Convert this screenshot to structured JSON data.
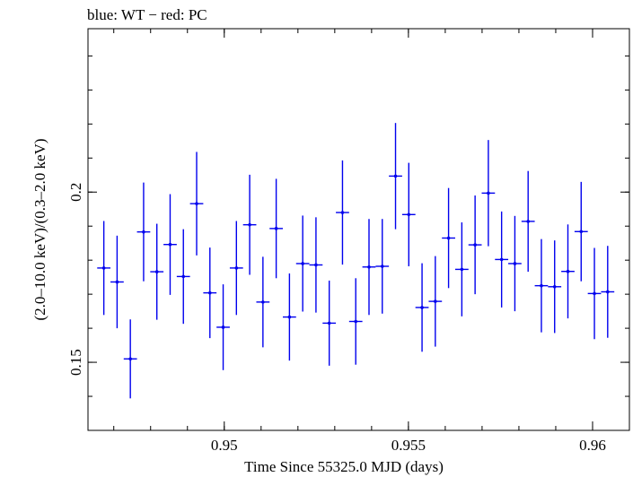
{
  "chart_data": {
    "type": "scatter",
    "title": "blue: WT − red: PC",
    "xlabel": "Time Since 55325.0 MJD (days)",
    "ylabel": "(2.0–10.0 keV)/(0.3–2.0 keV)",
    "xlim": [
      0.9463,
      0.961
    ],
    "ylim": [
      0.13,
      0.248
    ],
    "xticks": [
      {
        "value": 0.95,
        "label": "0.95"
      },
      {
        "value": 0.955,
        "label": "0.955"
      },
      {
        "value": 0.96,
        "label": "0.96"
      }
    ],
    "xminor_step": 0.001,
    "yticks": [
      {
        "value": 0.15,
        "label": "0.15"
      },
      {
        "value": 0.2,
        "label": "0.2"
      }
    ],
    "yminor_step": 0.01,
    "grid": false,
    "colors": {
      "WT": "#0000ee",
      "frame": "#000000"
    },
    "series": [
      {
        "name": "WT",
        "points": [
          {
            "x": 0.94673,
            "xerr": 0.00018,
            "y": 0.1777,
            "yerr": 0.0138
          },
          {
            "x": 0.94709,
            "xerr": 0.00018,
            "y": 0.1736,
            "yerr": 0.0136
          },
          {
            "x": 0.94745,
            "xerr": 0.00018,
            "y": 0.151,
            "yerr": 0.0116
          },
          {
            "x": 0.94781,
            "xerr": 0.00018,
            "y": 0.1883,
            "yerr": 0.0145
          },
          {
            "x": 0.94817,
            "xerr": 0.00018,
            "y": 0.1766,
            "yerr": 0.0141
          },
          {
            "x": 0.94853,
            "xerr": 0.00018,
            "y": 0.1846,
            "yerr": 0.0148
          },
          {
            "x": 0.94889,
            "xerr": 0.00018,
            "y": 0.1752,
            "yerr": 0.0139
          },
          {
            "x": 0.94925,
            "xerr": 0.00018,
            "y": 0.1966,
            "yerr": 0.0152
          },
          {
            "x": 0.94961,
            "xerr": 0.00018,
            "y": 0.1704,
            "yerr": 0.0133
          },
          {
            "x": 0.94997,
            "xerr": 0.00018,
            "y": 0.1603,
            "yerr": 0.0126
          },
          {
            "x": 0.95033,
            "xerr": 0.00018,
            "y": 0.1777,
            "yerr": 0.0138
          },
          {
            "x": 0.95069,
            "xerr": 0.00018,
            "y": 0.1904,
            "yerr": 0.0147
          },
          {
            "x": 0.95105,
            "xerr": 0.00018,
            "y": 0.1677,
            "yerr": 0.0133
          },
          {
            "x": 0.95141,
            "xerr": 0.00018,
            "y": 0.1893,
            "yerr": 0.0146
          },
          {
            "x": 0.95177,
            "xerr": 0.00018,
            "y": 0.1633,
            "yerr": 0.0128
          },
          {
            "x": 0.95213,
            "xerr": 0.00018,
            "y": 0.179,
            "yerr": 0.0141
          },
          {
            "x": 0.95249,
            "xerr": 0.00018,
            "y": 0.1786,
            "yerr": 0.014
          },
          {
            "x": 0.95285,
            "xerr": 0.00018,
            "y": 0.1615,
            "yerr": 0.0125
          },
          {
            "x": 0.95321,
            "xerr": 0.00018,
            "y": 0.194,
            "yerr": 0.0153
          },
          {
            "x": 0.95357,
            "xerr": 0.00018,
            "y": 0.162,
            "yerr": 0.0127
          },
          {
            "x": 0.95393,
            "xerr": 0.00018,
            "y": 0.178,
            "yerr": 0.0141
          },
          {
            "x": 0.95429,
            "xerr": 0.00018,
            "y": 0.1782,
            "yerr": 0.0139
          },
          {
            "x": 0.95465,
            "xerr": 0.00018,
            "y": 0.2047,
            "yerr": 0.0156
          },
          {
            "x": 0.95501,
            "xerr": 0.00018,
            "y": 0.1934,
            "yerr": 0.0152
          },
          {
            "x": 0.95537,
            "xerr": 0.00018,
            "y": 0.1661,
            "yerr": 0.013
          },
          {
            "x": 0.95573,
            "xerr": 0.00018,
            "y": 0.1679,
            "yerr": 0.0133
          },
          {
            "x": 0.95609,
            "xerr": 0.00018,
            "y": 0.1865,
            "yerr": 0.0147
          },
          {
            "x": 0.95645,
            "xerr": 0.00018,
            "y": 0.1773,
            "yerr": 0.0138
          },
          {
            "x": 0.95681,
            "xerr": 0.00018,
            "y": 0.1845,
            "yerr": 0.0145
          },
          {
            "x": 0.95717,
            "xerr": 0.00018,
            "y": 0.1997,
            "yerr": 0.0156
          },
          {
            "x": 0.95753,
            "xerr": 0.00018,
            "y": 0.1802,
            "yerr": 0.0141
          },
          {
            "x": 0.95789,
            "xerr": 0.00018,
            "y": 0.179,
            "yerr": 0.014
          },
          {
            "x": 0.95825,
            "xerr": 0.00018,
            "y": 0.1914,
            "yerr": 0.0148
          },
          {
            "x": 0.95861,
            "xerr": 0.00018,
            "y": 0.1725,
            "yerr": 0.0137
          },
          {
            "x": 0.95897,
            "xerr": 0.00018,
            "y": 0.1722,
            "yerr": 0.0136
          },
          {
            "x": 0.95933,
            "xerr": 0.00018,
            "y": 0.1767,
            "yerr": 0.0138
          },
          {
            "x": 0.95969,
            "xerr": 0.00018,
            "y": 0.1884,
            "yerr": 0.0146
          },
          {
            "x": 0.96005,
            "xerr": 0.00018,
            "y": 0.1702,
            "yerr": 0.0134
          },
          {
            "x": 0.96041,
            "xerr": 0.00018,
            "y": 0.1707,
            "yerr": 0.0135
          }
        ]
      }
    ]
  }
}
